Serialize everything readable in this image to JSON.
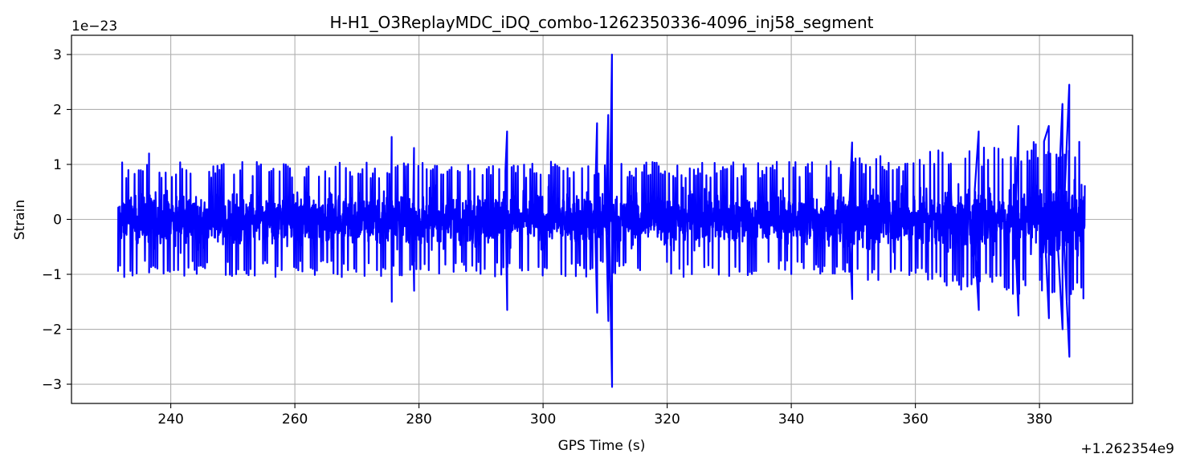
{
  "chart_data": {
    "type": "line",
    "title": "H-H1_O3ReplayMDC_iDQ_combo-1262350336-4096_inj58_segment",
    "xlabel": "GPS Time (s)",
    "ylabel": "Strain",
    "x_offset_label": "+1.262354e9",
    "y_scale_label": "1e−23",
    "xlim": [
      224,
      395
    ],
    "ylim": [
      -3.35,
      3.35
    ],
    "x_ticks": [
      240,
      260,
      280,
      300,
      320,
      340,
      360,
      380
    ],
    "x_tick_labels": [
      "240",
      "260",
      "280",
      "300",
      "320",
      "340",
      "360",
      "380"
    ],
    "y_ticks": [
      -3,
      -2,
      -1,
      0,
      1,
      2,
      3
    ],
    "y_tick_labels": [
      "−3",
      "−2",
      "−1",
      "0",
      "1",
      "2",
      "3"
    ],
    "grid": true,
    "legend": "none",
    "series": [
      {
        "color": "#0000ff",
        "x_range": [
          231.5,
          387.3
        ],
        "typical_peak": 1.0,
        "excursions": [
          {
            "x": 236.5,
            "max": 1.2,
            "min": -0.95
          },
          {
            "x": 275.6,
            "max": 1.5,
            "min": -1.5
          },
          {
            "x": 279.2,
            "max": 1.3,
            "min": -1.3
          },
          {
            "x": 294.2,
            "max": 1.6,
            "min": -1.65
          },
          {
            "x": 308.7,
            "max": 1.75,
            "min": -1.7
          },
          {
            "x": 310.5,
            "max": 1.9,
            "min": -1.85
          },
          {
            "x": 311.1,
            "max": 3.0,
            "min": -3.05
          },
          {
            "x": 349.8,
            "max": 1.4,
            "min": -1.45
          },
          {
            "x": 370.2,
            "max": 1.6,
            "min": -1.65
          },
          {
            "x": 376.6,
            "max": 1.7,
            "min": -1.75
          },
          {
            "x": 381.5,
            "max": 1.7,
            "min": -1.8
          },
          {
            "x": 383.7,
            "max": 2.1,
            "min": -2.0
          },
          {
            "x": 384.8,
            "max": 2.45,
            "min": -2.5
          }
        ]
      }
    ]
  }
}
